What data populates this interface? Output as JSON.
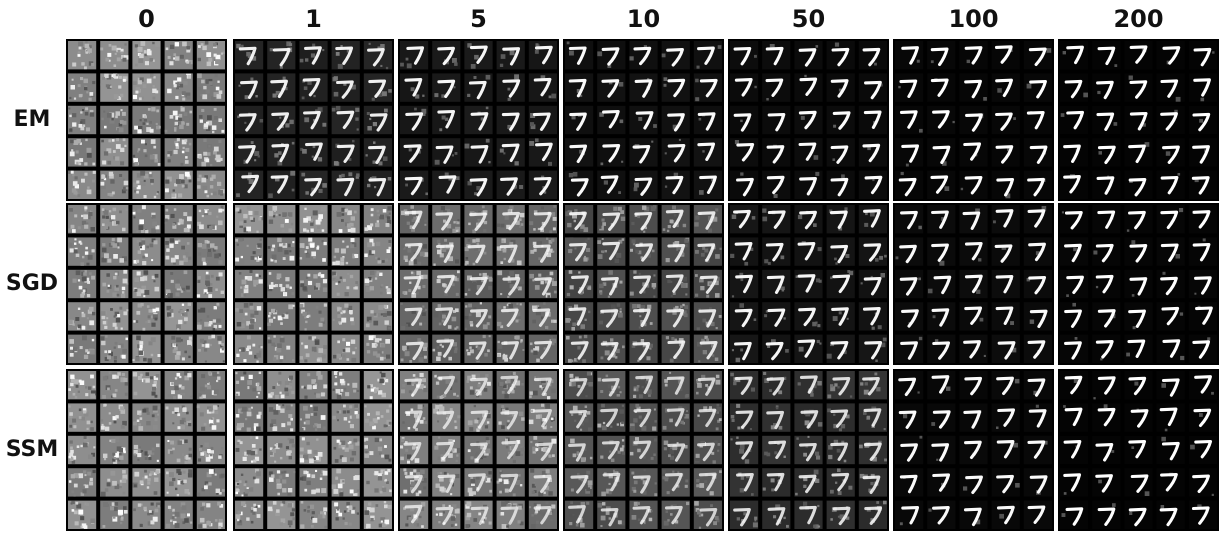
{
  "figure": {
    "columns": [
      {
        "label": "0",
        "noise": 1.0,
        "digit": 0.0
      },
      {
        "label": "1",
        "noise": 0.25,
        "digit": 0.85
      },
      {
        "label": "5",
        "noise": 0.18,
        "digit": 0.92
      },
      {
        "label": "10",
        "noise": 0.12,
        "digit": 0.95
      },
      {
        "label": "50",
        "noise": 0.08,
        "digit": 0.97
      },
      {
        "label": "100",
        "noise": 0.05,
        "digit": 1.0
      },
      {
        "label": "200",
        "noise": 0.03,
        "digit": 1.0
      }
    ],
    "rows": [
      {
        "label": "EM",
        "noise": [
          1.0,
          0.25,
          0.18,
          0.12,
          0.08,
          0.05,
          0.03
        ],
        "digit": [
          0.0,
          0.85,
          0.92,
          0.95,
          0.97,
          1.0,
          1.0
        ]
      },
      {
        "label": "SGD",
        "noise": [
          1.0,
          1.0,
          0.75,
          0.55,
          0.15,
          0.08,
          0.04
        ],
        "digit": [
          0.0,
          0.0,
          0.55,
          0.7,
          0.9,
          0.95,
          1.0
        ]
      },
      {
        "label": "SSM",
        "noise": [
          1.0,
          1.0,
          0.9,
          0.6,
          0.35,
          0.06,
          0.03
        ],
        "digit": [
          0.0,
          0.0,
          0.35,
          0.45,
          0.65,
          0.95,
          1.0
        ]
      }
    ],
    "grid_per_panel": [
      5,
      5
    ],
    "digit_shown": "7"
  }
}
